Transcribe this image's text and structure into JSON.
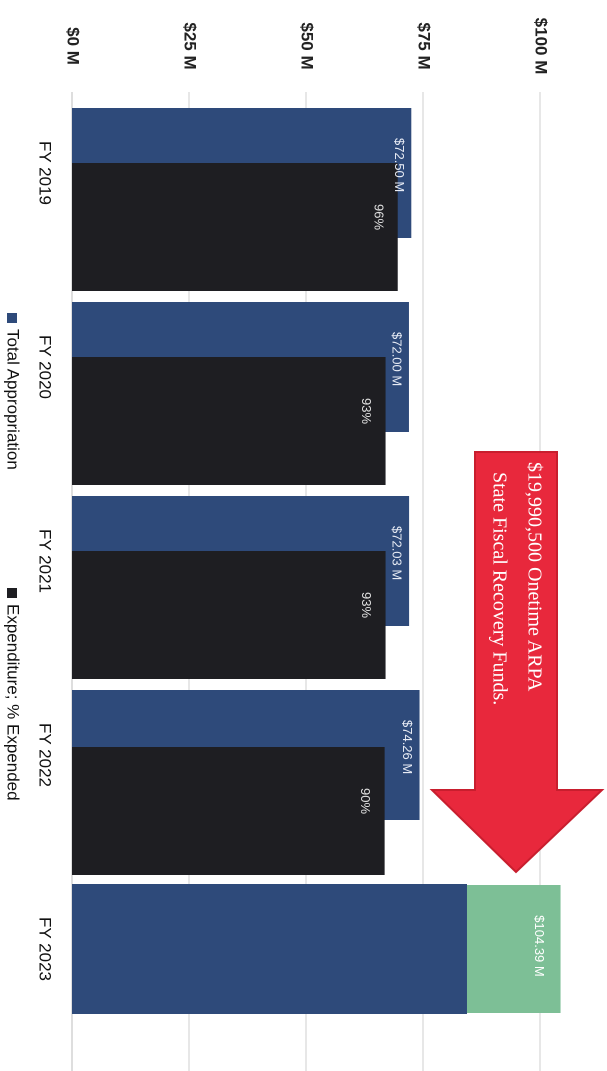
{
  "chart_data": {
    "type": "bar",
    "orientation": "rotated-90-clockwise",
    "categories": [
      "FY 2019",
      "FY 2020",
      "FY 2021",
      "FY 2022",
      "FY 2023"
    ],
    "ylim": [
      0,
      100
    ],
    "y_ticks": [
      0,
      25,
      50,
      75,
      100
    ],
    "y_tick_labels": [
      "$0 M",
      "$25 M",
      "$50 M",
      "$75 M",
      "$100 M"
    ],
    "grid": true,
    "legend_placement": "bottom",
    "series": [
      {
        "name": "Total Appropriation",
        "color": "#2e4a7a",
        "values": [
          72.5,
          72.0,
          72.03,
          74.26,
          84.4
        ],
        "labels": [
          "$72.50 M",
          "$72.00 M",
          "$72.03 M",
          "$74.26 M",
          ""
        ]
      },
      {
        "name": "Expenditure; % Expended",
        "color": "#1e1e22",
        "values": [
          69.6,
          67.0,
          67.0,
          66.8,
          null
        ],
        "labels": [
          "96%",
          "93%",
          "93%",
          "90%",
          ""
        ]
      }
    ],
    "stacked_extra": {
      "category": "FY 2023",
      "color": "#7dbf96",
      "value_start": 84.4,
      "value_end": 104.39,
      "label": "$104.39 M"
    },
    "annotation": {
      "lines": [
        "$19,990,500 Onetime ARPA",
        "State Fiscal Recovery Funds."
      ],
      "color": "#e8283c"
    }
  }
}
